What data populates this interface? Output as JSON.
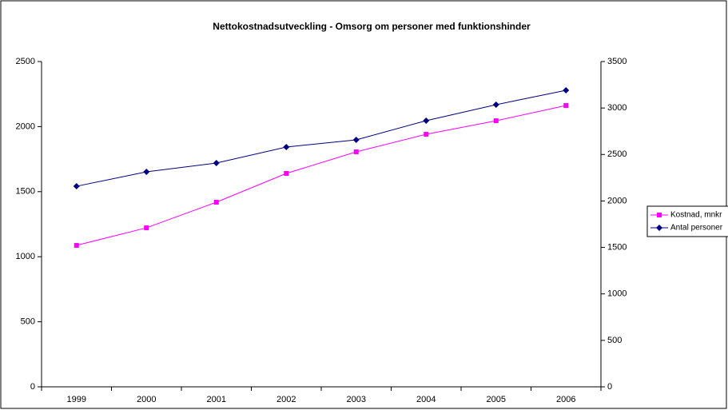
{
  "chart_data": {
    "type": "line",
    "title": "Nettokostnadsutveckling - Omsorg om personer med funktionshinder",
    "categories": [
      "1999",
      "2000",
      "2001",
      "2002",
      "2003",
      "2004",
      "2005",
      "2006"
    ],
    "series": [
      {
        "name": "Kostnad, mnkr",
        "color": "#ff00ff",
        "marker": "square",
        "values": [
          1087,
          1222,
          1419,
          1640,
          1806,
          1941,
          2045,
          2162
        ]
      },
      {
        "name": "Antal personer",
        "color": "#000080",
        "marker": "diamond",
        "axis": "y2",
        "values": [
          2158,
          2313,
          2408,
          2580,
          2657,
          2864,
          3036,
          3190
        ]
      }
    ],
    "ylim": [
      0,
      2500
    ],
    "yticks": [
      0,
      500,
      1000,
      1500,
      2000,
      2500
    ],
    "y2lim": [
      0,
      3500
    ],
    "y2ticks": [
      0,
      500,
      1000,
      1500,
      2000,
      2500,
      3000,
      3500
    ],
    "grid": false,
    "legend": "right"
  }
}
